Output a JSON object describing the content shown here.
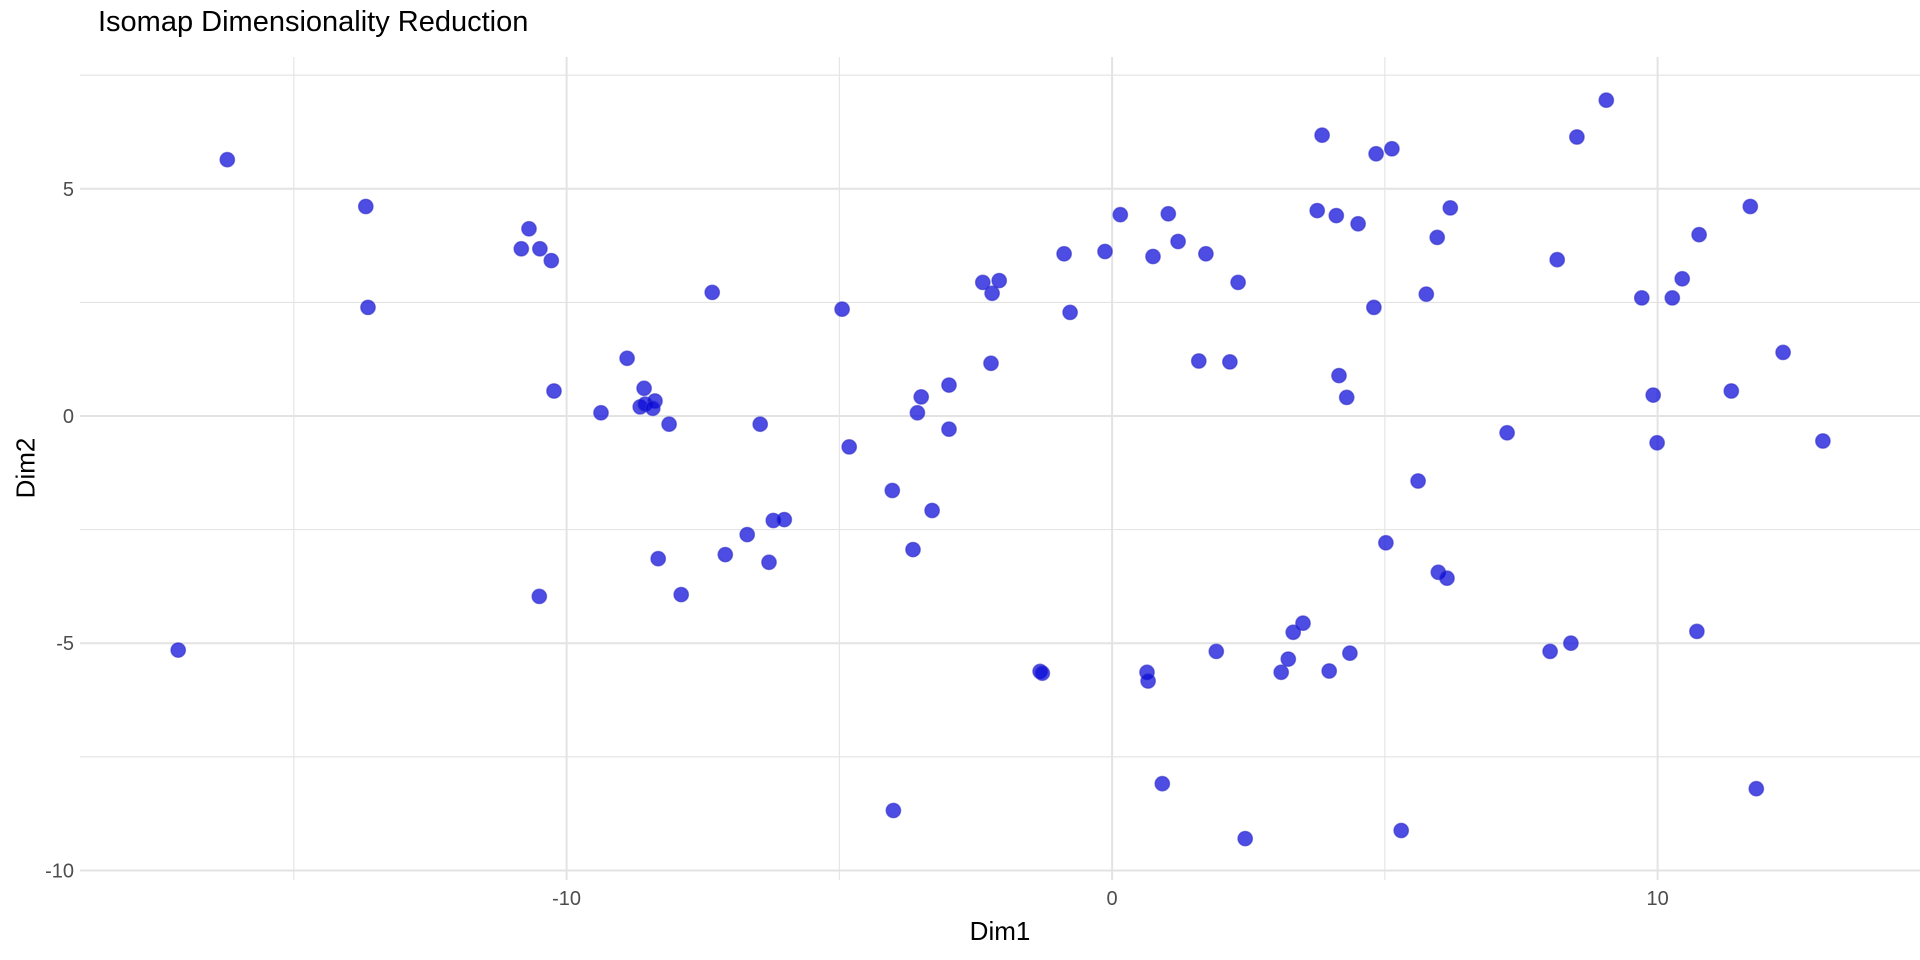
{
  "title": "Isomap Dimensionality Reduction",
  "chart_data": {
    "type": "scatter",
    "title": "Isomap Dimensionality Reduction",
    "xlabel": "Dim1",
    "ylabel": "Dim2",
    "xlim": [
      -18.92,
      14.81
    ],
    "ylim": [
      -10.21,
      7.9
    ],
    "x_major_ticks": [
      -10,
      0,
      10
    ],
    "x_minor_gridlines": [
      -15,
      -5,
      5
    ],
    "y_major_ticks": [
      5,
      0,
      -5,
      -10
    ],
    "y_minor_gridlines": [
      7.5,
      2.5,
      -2.5,
      -7.5
    ],
    "grid": true,
    "legend": "none",
    "grid_color": "#E3E3E3",
    "tick_label_color": "#4D4D4D",
    "point_color": "#0808D8",
    "point_stroke": "#3330C9",
    "point_opacity": 0.72,
    "points": [
      [
        -16.22,
        5.64
      ],
      [
        -13.68,
        4.61
      ],
      [
        -13.64,
        2.39
      ],
      [
        -10.69,
        4.12
      ],
      [
        -10.83,
        3.68
      ],
      [
        -10.49,
        3.68
      ],
      [
        -10.28,
        3.42
      ],
      [
        -7.33,
        2.72
      ],
      [
        -4.95,
        2.35
      ],
      [
        -8.89,
        1.27
      ],
      [
        -8.58,
        0.61
      ],
      [
        -10.23,
        0.55
      ],
      [
        -8.65,
        0.2
      ],
      [
        -8.56,
        0.26
      ],
      [
        -8.38,
        0.33
      ],
      [
        -8.42,
        0.17
      ],
      [
        -9.37,
        0.07
      ],
      [
        -8.12,
        -0.18
      ],
      [
        -6.45,
        -0.18
      ],
      [
        -4.82,
        -0.68
      ],
      [
        -3.57,
        0.07
      ],
      [
        -3.5,
        0.42
      ],
      [
        -2.99,
        0.68
      ],
      [
        -2.99,
        -0.29
      ],
      [
        3.85,
        6.18
      ],
      [
        4.84,
        5.77
      ],
      [
        5.13,
        5.88
      ],
      [
        0.15,
        4.43
      ],
      [
        1.03,
        4.45
      ],
      [
        3.76,
        4.52
      ],
      [
        4.11,
        4.41
      ],
      [
        4.51,
        4.23
      ],
      [
        5.96,
        3.93
      ],
      [
        1.21,
        3.84
      ],
      [
        -0.88,
        3.57
      ],
      [
        -0.13,
        3.62
      ],
      [
        0.75,
        3.51
      ],
      [
        1.72,
        3.57
      ],
      [
        -2.37,
        2.94
      ],
      [
        -2.07,
        2.98
      ],
      [
        -2.2,
        2.7
      ],
      [
        2.31,
        2.94
      ],
      [
        5.76,
        2.68
      ],
      [
        -0.77,
        2.28
      ],
      [
        4.8,
        2.39
      ],
      [
        -2.22,
        1.16
      ],
      [
        1.59,
        1.21
      ],
      [
        2.16,
        1.19
      ],
      [
        4.16,
        0.89
      ],
      [
        4.3,
        0.41
      ],
      [
        9.06,
        6.95
      ],
      [
        8.52,
        6.14
      ],
      [
        6.2,
        4.58
      ],
      [
        11.7,
        4.61
      ],
      [
        10.76,
        3.99
      ],
      [
        8.16,
        3.44
      ],
      [
        10.45,
        3.02
      ],
      [
        9.71,
        2.6
      ],
      [
        10.27,
        2.6
      ],
      [
        12.3,
        1.4
      ],
      [
        11.35,
        0.55
      ],
      [
        9.92,
        0.46
      ],
      [
        7.24,
        -0.37
      ],
      [
        9.99,
        -0.59
      ],
      [
        13.03,
        -0.55
      ],
      [
        -17.12,
        -5.15
      ],
      [
        -4.03,
        -1.64
      ],
      [
        -3.3,
        -2.08
      ],
      [
        -6.21,
        -2.3
      ],
      [
        -6.01,
        -2.28
      ],
      [
        -6.69,
        -2.61
      ],
      [
        -8.32,
        -3.14
      ],
      [
        -7.09,
        -3.05
      ],
      [
        -6.29,
        -3.22
      ],
      [
        -3.65,
        -2.94
      ],
      [
        -10.5,
        -3.97
      ],
      [
        -7.9,
        -3.93
      ],
      [
        -4.01,
        -8.68
      ],
      [
        5.61,
        -1.43
      ],
      [
        5.02,
        -2.79
      ],
      [
        5.98,
        -3.44
      ],
      [
        6.14,
        -3.57
      ],
      [
        3.5,
        -4.56
      ],
      [
        3.32,
        -4.76
      ],
      [
        1.91,
        -5.18
      ],
      [
        3.23,
        -5.35
      ],
      [
        4.36,
        -5.22
      ],
      [
        3.1,
        -5.64
      ],
      [
        3.98,
        -5.61
      ],
      [
        -1.32,
        -5.62
      ],
      [
        -1.28,
        -5.66
      ],
      [
        0.64,
        -5.64
      ],
      [
        0.66,
        -5.83
      ],
      [
        0.92,
        -8.09
      ],
      [
        2.44,
        -9.3
      ],
      [
        5.3,
        -9.12
      ],
      [
        8.03,
        -5.18
      ],
      [
        8.41,
        -5.0
      ],
      [
        10.72,
        -4.74
      ],
      [
        11.81,
        -8.2
      ]
    ]
  }
}
